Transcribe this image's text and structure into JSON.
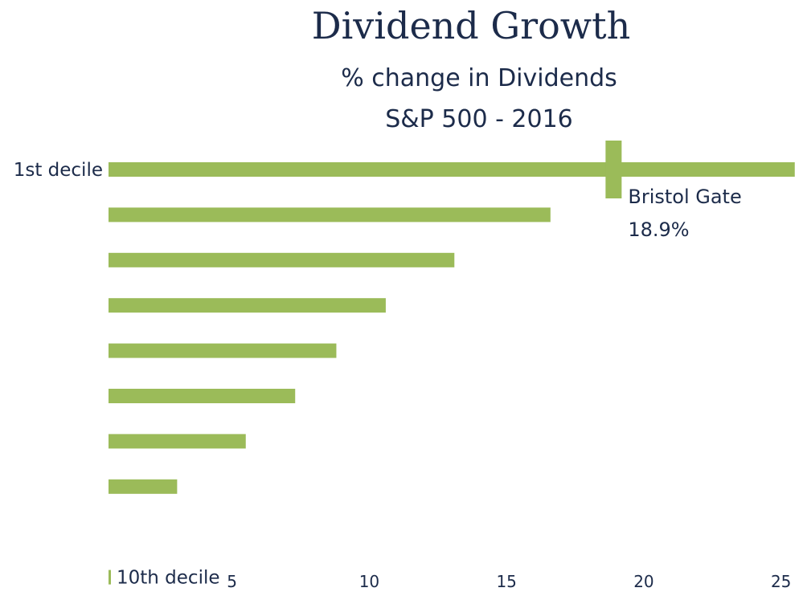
{
  "chart_data": {
    "type": "bar",
    "orientation": "horizontal",
    "title": "Dividend Growth",
    "subtitle_lines": [
      "% change in Dividends",
      "S&P 500 - 2016"
    ],
    "categories": [
      "1st decile",
      "",
      "",
      "",
      "",
      "",
      "",
      "",
      "",
      "10th decile"
    ],
    "values": [
      25.5,
      16.6,
      13.1,
      10.6,
      8.8,
      7.3,
      5.5,
      3.0,
      0.0,
      0.1
    ],
    "bar_color": "#9bbb59",
    "text_color": "#1c2b4a",
    "xlim": [
      0.5,
      25.8
    ],
    "xticks": [
      5,
      10,
      15,
      20,
      25
    ],
    "grid": false,
    "legend": "none",
    "annotation": {
      "label": "Bristol Gate",
      "value_label": "18.9%",
      "value": 18.9
    }
  }
}
